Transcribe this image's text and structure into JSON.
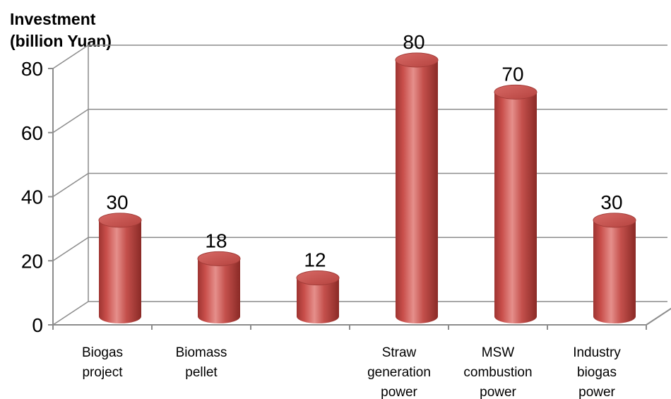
{
  "chart_data": {
    "type": "bar",
    "style": "3d-cylinder",
    "ylabel": [
      "Investment",
      "(billion  Yuan)"
    ],
    "xlabel": "",
    "ylim": [
      0,
      80
    ],
    "yticks": [
      0,
      20,
      40,
      60,
      80
    ],
    "grid": true,
    "categories": [
      [
        "Biogas",
        "project"
      ],
      [
        "Biomass",
        "pellet"
      ],
      [],
      [
        "Straw",
        "generation",
        "power"
      ],
      [
        "MSW",
        "combustion",
        "power"
      ],
      [
        "Industry",
        "biogas",
        "power"
      ]
    ],
    "values": [
      30,
      18,
      12,
      80,
      70,
      30
    ],
    "data_labels": [
      "30",
      "18",
      "12",
      "80",
      "70",
      "30"
    ],
    "bar_color": "#c0504d",
    "bar_highlight": "#e8908c",
    "bar_shadow": "#8c2b27"
  }
}
